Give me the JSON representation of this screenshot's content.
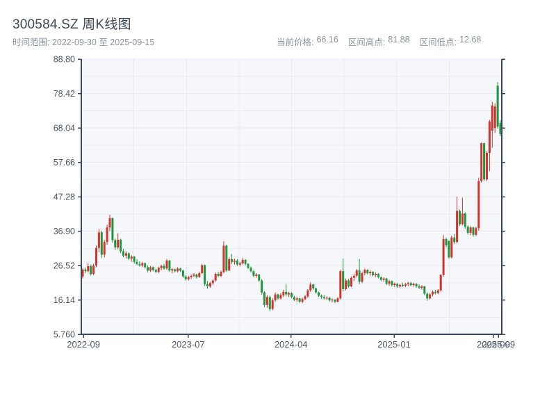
{
  "header": {
    "title": "300584.SZ 周K线图",
    "subtitle": "时间范围: 2022-09-30 至 2025-09-15",
    "stats": [
      {
        "label": "当前价格:",
        "value": "66.16"
      },
      {
        "label": "区间高点:",
        "value": "81.88"
      },
      {
        "label": "区间低点:",
        "value": "12.68"
      }
    ]
  },
  "colors": {
    "up": "#d0342c",
    "down": "#22963f",
    "axis": "#3a4660",
    "grid": "#e7ebf1",
    "plot_bg": "#f5f7fa",
    "tick_label": "#4d5766",
    "muted": "#8b959f"
  },
  "chart_data": {
    "type": "candlestick",
    "symbol": "300584.SZ",
    "interval": "weekly",
    "title": "300584.SZ 周K线图",
    "start_date": "2022-09-30",
    "end_date": "2025-09-15",
    "current_price": 66.16,
    "range_high": 81.88,
    "range_low": 12.68,
    "ylim": [
      5.76,
      88.8
    ],
    "y_ticks": [
      {
        "label": "88.80",
        "value": 88.8
      },
      {
        "label": "78.42",
        "value": 78.42
      },
      {
        "label": "68.04",
        "value": 68.04
      },
      {
        "label": "57.66",
        "value": 57.66
      },
      {
        "label": "47.28",
        "value": 47.28
      },
      {
        "label": "36.90",
        "value": 36.9
      },
      {
        "label": "26.52",
        "value": 26.52
      },
      {
        "label": "16.14",
        "value": 16.14
      },
      {
        "label": "5.760",
        "value": 5.76
      }
    ],
    "x_ticks": [
      {
        "label": "2022-09",
        "week": 0.3
      },
      {
        "label": "2023-07",
        "week": 38.9
      },
      {
        "label": "2024-04",
        "week": 76.8
      },
      {
        "label": "2025-01",
        "week": 114.8
      },
      {
        "label": "2025-09",
        "week": 151.4
      },
      {
        "label": "2025-09",
        "week": 153.3
      }
    ],
    "candles": [
      [
        23.2,
        25.8,
        22.6,
        25.3
      ],
      [
        25.3,
        25.9,
        24.2,
        24.8
      ],
      [
        24.8,
        27.2,
        24.5,
        26.3
      ],
      [
        26.3,
        26.8,
        23.4,
        24.0
      ],
      [
        24.0,
        27.0,
        23.6,
        26.5
      ],
      [
        26.5,
        32.5,
        26.0,
        31.8
      ],
      [
        31.8,
        37.5,
        30.5,
        36.5
      ],
      [
        36.5,
        37.0,
        28.8,
        29.8
      ],
      [
        29.8,
        34.2,
        29.0,
        33.6
      ],
      [
        33.6,
        38.8,
        32.8,
        38.0
      ],
      [
        38.0,
        41.9,
        36.9,
        40.8
      ],
      [
        40.8,
        41.0,
        33.4,
        34.2
      ],
      [
        34.2,
        34.6,
        31.2,
        32.0
      ],
      [
        32.0,
        36.3,
        31.4,
        34.3
      ],
      [
        34.3,
        34.6,
        30.2,
        30.8
      ],
      [
        30.8,
        31.5,
        29.0,
        29.5
      ],
      [
        29.5,
        30.8,
        28.6,
        30.2
      ],
      [
        30.2,
        30.5,
        28.2,
        28.6
      ],
      [
        28.6,
        29.6,
        27.6,
        29.2
      ],
      [
        29.2,
        29.4,
        27.2,
        27.6
      ],
      [
        27.6,
        28.4,
        26.6,
        27.0
      ],
      [
        27.0,
        27.8,
        26.2,
        26.5
      ],
      [
        26.5,
        27.6,
        26.0,
        27.2
      ],
      [
        27.2,
        27.4,
        25.6,
        26.0
      ],
      [
        26.0,
        26.6,
        24.4,
        25.0
      ],
      [
        25.0,
        26.4,
        24.6,
        26.0
      ],
      [
        26.0,
        26.2,
        24.8,
        25.2
      ],
      [
        25.2,
        25.6,
        24.2,
        24.6
      ],
      [
        24.6,
        26.2,
        24.2,
        25.8
      ],
      [
        25.8,
        26.8,
        25.0,
        26.4
      ],
      [
        26.4,
        27.0,
        25.2,
        25.6
      ],
      [
        25.6,
        28.5,
        25.2,
        28.0
      ],
      [
        28.0,
        28.2,
        24.6,
        25.0
      ],
      [
        25.0,
        25.8,
        24.2,
        25.4
      ],
      [
        25.4,
        25.6,
        24.4,
        24.8
      ],
      [
        24.8,
        26.0,
        24.4,
        25.6
      ],
      [
        25.6,
        25.8,
        24.6,
        25.0
      ],
      [
        25.0,
        25.2,
        22.8,
        23.2
      ],
      [
        23.2,
        23.6,
        21.9,
        22.4
      ],
      [
        22.4,
        23.4,
        22.0,
        23.0
      ],
      [
        23.0,
        23.8,
        22.4,
        23.4
      ],
      [
        23.4,
        24.2,
        23.0,
        23.8
      ],
      [
        23.8,
        24.0,
        22.6,
        23.0
      ],
      [
        23.0,
        24.6,
        22.8,
        24.2
      ],
      [
        24.2,
        27.0,
        24.0,
        26.6
      ],
      [
        26.6,
        26.8,
        20.3,
        20.9
      ],
      [
        20.9,
        21.8,
        19.5,
        20.2
      ],
      [
        20.2,
        21.6,
        19.8,
        21.2
      ],
      [
        21.2,
        22.4,
        20.6,
        22.0
      ],
      [
        22.0,
        24.4,
        21.6,
        24.0
      ],
      [
        24.0,
        24.6,
        23.0,
        23.4
      ],
      [
        23.4,
        25.0,
        23.0,
        24.6
      ],
      [
        24.6,
        33.8,
        24.2,
        32.5
      ],
      [
        32.5,
        32.8,
        24.6,
        25.0
      ],
      [
        25.0,
        29.0,
        24.8,
        28.4
      ],
      [
        28.4,
        30.0,
        27.0,
        27.6
      ],
      [
        27.6,
        28.6,
        26.8,
        28.0
      ],
      [
        28.0,
        28.4,
        26.4,
        26.8
      ],
      [
        26.8,
        27.6,
        26.2,
        27.2
      ],
      [
        27.2,
        28.8,
        26.8,
        28.2
      ],
      [
        28.2,
        28.4,
        26.6,
        27.0
      ],
      [
        27.0,
        27.2,
        25.4,
        25.8
      ],
      [
        25.8,
        26.2,
        24.4,
        24.8
      ],
      [
        24.8,
        25.0,
        23.0,
        23.4
      ],
      [
        23.4,
        24.2,
        22.8,
        23.8
      ],
      [
        23.8,
        24.0,
        21.6,
        22.0
      ],
      [
        22.0,
        22.4,
        17.8,
        18.4
      ],
      [
        18.4,
        18.8,
        14.0,
        14.6
      ],
      [
        14.6,
        17.6,
        13.8,
        17.0
      ],
      [
        17.0,
        17.4,
        12.68,
        13.4
      ],
      [
        13.4,
        16.6,
        13.0,
        16.0
      ],
      [
        16.0,
        18.4,
        15.6,
        17.8
      ],
      [
        17.8,
        18.0,
        16.2,
        16.6
      ],
      [
        16.6,
        18.2,
        16.2,
        17.6
      ],
      [
        17.6,
        19.2,
        17.0,
        18.6
      ],
      [
        18.6,
        21.0,
        17.2,
        17.8
      ],
      [
        17.8,
        18.6,
        17.0,
        18.2
      ],
      [
        18.2,
        18.4,
        16.6,
        17.0
      ],
      [
        17.0,
        17.4,
        15.8,
        16.2
      ],
      [
        16.2,
        17.0,
        15.6,
        16.6
      ],
      [
        16.6,
        16.8,
        15.2,
        15.6
      ],
      [
        15.6,
        16.8,
        15.2,
        16.4
      ],
      [
        16.4,
        17.6,
        16.0,
        17.2
      ],
      [
        17.2,
        19.4,
        16.8,
        19.0
      ],
      [
        19.0,
        21.4,
        18.6,
        20.8
      ],
      [
        20.8,
        21.0,
        19.2,
        19.6
      ],
      [
        19.6,
        19.8,
        18.0,
        18.4
      ],
      [
        18.4,
        18.6,
        17.0,
        17.4
      ],
      [
        17.4,
        17.8,
        16.4,
        17.0
      ],
      [
        17.0,
        17.6,
        16.2,
        16.6
      ],
      [
        16.6,
        17.2,
        16.0,
        16.8
      ],
      [
        16.8,
        17.0,
        15.6,
        16.0
      ],
      [
        16.0,
        16.6,
        15.4,
        16.2
      ],
      [
        16.2,
        16.4,
        15.2,
        15.6
      ],
      [
        15.6,
        17.0,
        15.4,
        16.6
      ],
      [
        16.6,
        25.2,
        16.2,
        24.8
      ],
      [
        24.8,
        28.6,
        18.7,
        19.4
      ],
      [
        19.4,
        22.6,
        19.0,
        22.0
      ],
      [
        22.0,
        22.4,
        19.8,
        20.2
      ],
      [
        20.2,
        23.2,
        20.0,
        22.8
      ],
      [
        22.8,
        24.0,
        21.8,
        23.4
      ],
      [
        23.4,
        25.4,
        23.0,
        25.0
      ],
      [
        25.0,
        28.5,
        20.9,
        21.6
      ],
      [
        21.6,
        24.6,
        21.2,
        24.2
      ],
      [
        24.2,
        25.6,
        23.6,
        25.2
      ],
      [
        25.2,
        25.4,
        23.8,
        24.2
      ],
      [
        24.2,
        25.0,
        23.4,
        24.6
      ],
      [
        24.6,
        24.8,
        23.2,
        23.6
      ],
      [
        23.6,
        24.4,
        23.0,
        24.0
      ],
      [
        24.0,
        24.2,
        22.6,
        23.0
      ],
      [
        23.0,
        23.2,
        21.8,
        22.2
      ],
      [
        22.2,
        23.0,
        21.6,
        22.6
      ],
      [
        22.6,
        22.8,
        20.6,
        21.0
      ],
      [
        21.0,
        22.2,
        20.4,
        21.8
      ],
      [
        21.8,
        22.0,
        20.2,
        20.6
      ],
      [
        20.6,
        21.4,
        20.0,
        21.0
      ],
      [
        21.0,
        21.2,
        19.8,
        20.2
      ],
      [
        20.2,
        21.0,
        19.9,
        20.7
      ],
      [
        20.7,
        21.3,
        20.1,
        20.4
      ],
      [
        20.4,
        21.2,
        20.0,
        20.9
      ],
      [
        20.9,
        21.6,
        20.3,
        21.2
      ],
      [
        21.2,
        21.5,
        20.2,
        20.6
      ],
      [
        20.6,
        21.3,
        20.1,
        21.0
      ],
      [
        21.0,
        21.2,
        19.8,
        20.2
      ],
      [
        20.2,
        20.8,
        19.4,
        19.8
      ],
      [
        19.8,
        20.6,
        19.2,
        20.2
      ],
      [
        20.2,
        20.4,
        17.6,
        18.0
      ],
      [
        18.0,
        18.4,
        15.9,
        16.6
      ],
      [
        16.6,
        18.2,
        16.2,
        17.8
      ],
      [
        17.8,
        19.0,
        17.2,
        18.6
      ],
      [
        18.6,
        19.2,
        17.8,
        18.2
      ],
      [
        18.2,
        19.4,
        17.9,
        19.0
      ],
      [
        19.0,
        24.0,
        18.6,
        23.6
      ],
      [
        23.6,
        35.7,
        23.2,
        34.5
      ],
      [
        34.5,
        35.0,
        32.0,
        32.6
      ],
      [
        33.9,
        34.1,
        28.6,
        29.0
      ],
      [
        29.0,
        35.5,
        28.6,
        35.0
      ],
      [
        35.0,
        36.0,
        33.0,
        33.6
      ],
      [
        33.6,
        47.3,
        33.2,
        43.0
      ],
      [
        43.0,
        43.4,
        38.4,
        39.0
      ],
      [
        39.0,
        47.0,
        38.6,
        42.2
      ],
      [
        42.2,
        42.6,
        37.6,
        38.2
      ],
      [
        38.2,
        38.6,
        35.8,
        36.4
      ],
      [
        36.4,
        38.4,
        35.6,
        38.0
      ],
      [
        38.0,
        38.2,
        35.2,
        35.8
      ],
      [
        35.8,
        38.2,
        35.4,
        37.8
      ],
      [
        37.8,
        53.0,
        37.0,
        52.0
      ],
      [
        52.0,
        63.6,
        51.5,
        63.4
      ],
      [
        63.4,
        63.6,
        52.0,
        52.5
      ],
      [
        52.5,
        61.0,
        52.0,
        60.5
      ],
      [
        60.5,
        70.5,
        55.0,
        70.0
      ],
      [
        67.2,
        75.9,
        62.0,
        74.8
      ],
      [
        68.0,
        75.5,
        66.5,
        74.5
      ],
      [
        80.8,
        81.88,
        67.8,
        68.4
      ],
      [
        69.5,
        70.4,
        65.5,
        66.16
      ]
    ]
  }
}
